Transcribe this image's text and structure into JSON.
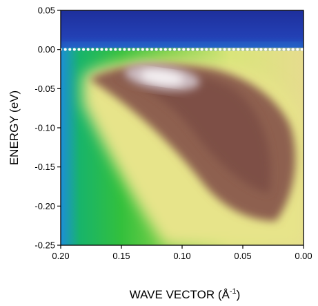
{
  "chart_data": {
    "type": "heatmap",
    "title": "",
    "xlabel": "WAVE VECTOR (Å",
    "xlabel_sup": "-1",
    "xlabel_close": ")",
    "ylabel": "ENERGY (eV)",
    "xlim": [
      0.2,
      0.0
    ],
    "ylim": [
      -0.25,
      0.05
    ],
    "x_ticks": [
      "0.20",
      "0.15",
      "0.10",
      "0.05",
      "0.00"
    ],
    "y_ticks": [
      "0.05",
      "0.00",
      "-0.05",
      "-0.10",
      "-0.15",
      "-0.20",
      "-0.25"
    ],
    "fermi_level_line": {
      "energy": 0.0,
      "style": "dotted",
      "color": "#ffffff"
    },
    "colormap": [
      "#1f3aa8",
      "#1b8fd6",
      "#18b85a",
      "#3fc83a",
      "#e8ea8c",
      "#c9a96a",
      "#8a5a4a",
      "#ffffff"
    ],
    "band_ridge": [
      {
        "k": 0.17,
        "E": -0.03
      },
      {
        "k": 0.14,
        "E": -0.035
      },
      {
        "k": 0.11,
        "E": -0.05
      },
      {
        "k": 0.08,
        "E": -0.09
      },
      {
        "k": 0.05,
        "E": -0.13
      },
      {
        "k": 0.02,
        "E": -0.17
      }
    ],
    "grid": false,
    "legend": "none"
  }
}
